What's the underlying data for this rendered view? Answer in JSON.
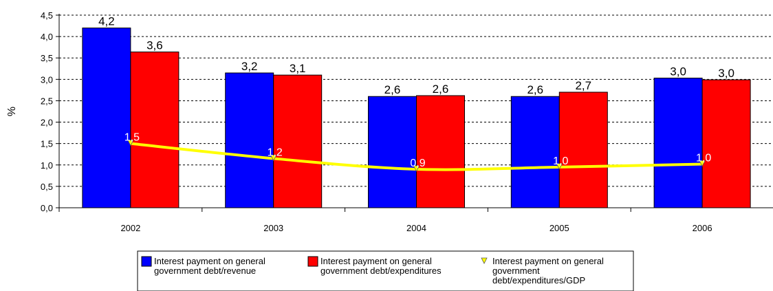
{
  "chart_data": {
    "type": "bar",
    "categories": [
      "2002",
      "2003",
      "2004",
      "2005",
      "2006"
    ],
    "ylabel": "%",
    "ylim": [
      0,
      4.5
    ],
    "yticks": [
      "0,0",
      "0,5",
      "1,0",
      "1,5",
      "2,0",
      "2,5",
      "3,0",
      "3,5",
      "4,0",
      "4,5"
    ],
    "grid": true,
    "legend_position": "bottom",
    "series": [
      {
        "name": "Interest payment on general government debt/revenue",
        "type": "bar",
        "color": "#0000ff",
        "values": [
          4.2,
          3.15,
          2.6,
          2.6,
          3.03
        ],
        "labels": [
          "4,2",
          "3,2",
          "2,6",
          "2,6",
          "3,0"
        ]
      },
      {
        "name": "Interest payment on general government debt/expenditures",
        "type": "bar",
        "color": "#ff0000",
        "values": [
          3.64,
          3.1,
          2.62,
          2.7,
          2.99
        ],
        "labels": [
          "3,6",
          "3,1",
          "2,6",
          "2,7",
          "3,0"
        ]
      },
      {
        "name": "Interest payment on general government debt/expenditures/GDP",
        "type": "line",
        "color": "#ffff00",
        "values": [
          1.5,
          1.15,
          0.9,
          0.95,
          1.02
        ],
        "labels": [
          "1,5",
          "1,2",
          "0,9",
          "1,0",
          "1,0"
        ]
      }
    ]
  },
  "legend": {
    "items": [
      {
        "lines": [
          "Interest payment on general",
          "government debt/revenue"
        ]
      },
      {
        "lines": [
          "Interest payment on general",
          "government debt/expenditures"
        ]
      },
      {
        "lines": [
          "Interest payment on general",
          "government",
          "debt/expenditures/GDP"
        ]
      }
    ]
  }
}
